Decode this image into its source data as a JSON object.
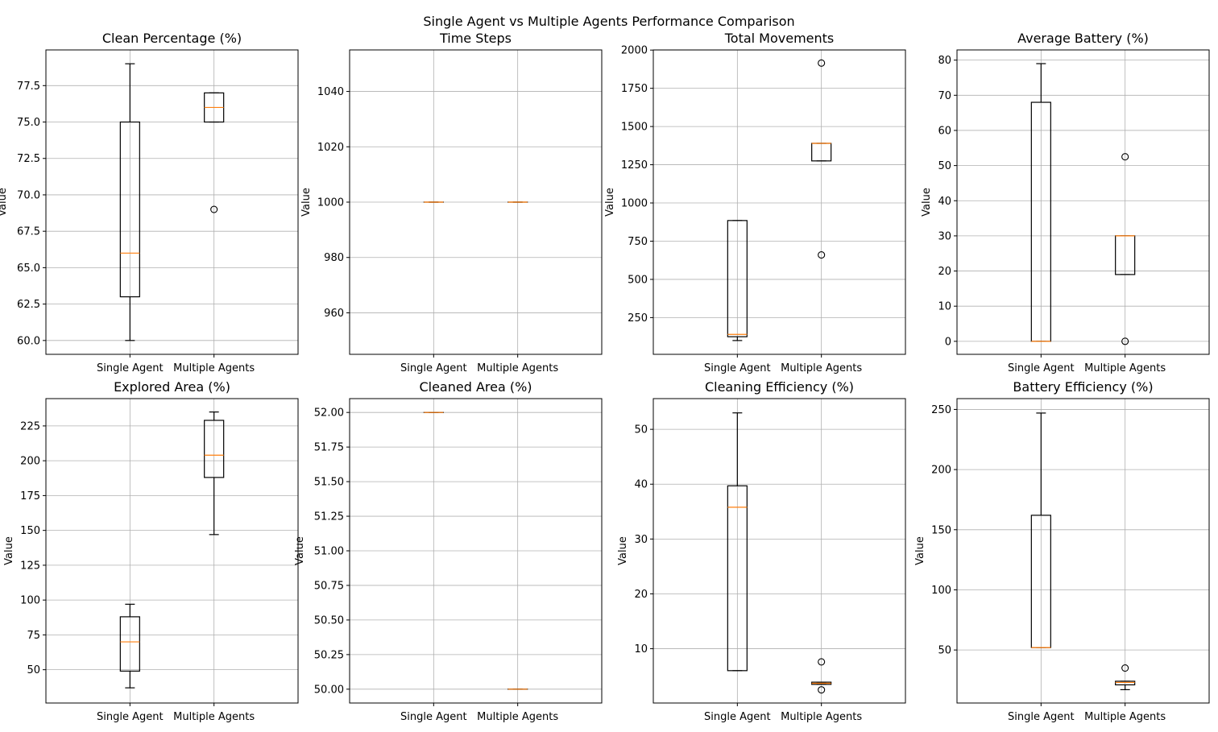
{
  "figure": {
    "suptitle": "Single Agent vs Multiple Agents Performance Comparison"
  },
  "chart_data": [
    {
      "type": "box",
      "title": "Clean Percentage (%)",
      "ylabel": "Value",
      "categories": [
        "Single Agent",
        "Multiple Agents"
      ],
      "ylim": [
        59.05,
        79.95
      ],
      "yticks": [
        60.0,
        62.5,
        65.0,
        67.5,
        70.0,
        72.5,
        75.0,
        77.5
      ],
      "ytick_labels": [
        "60.0",
        "62.5",
        "65.0",
        "67.5",
        "70.0",
        "72.5",
        "75.0",
        "77.5"
      ],
      "boxes": [
        {
          "whislo": 60,
          "q1": 63,
          "med": 66,
          "q3": 75,
          "whishi": 79,
          "fliers": []
        },
        {
          "whislo": 75,
          "q1": 75,
          "med": 76,
          "q3": 77,
          "whishi": 77,
          "fliers": [
            69
          ]
        }
      ],
      "grid": true
    },
    {
      "type": "box",
      "title": "Time Steps",
      "ylabel": "Value",
      "categories": [
        "Single Agent",
        "Multiple Agents"
      ],
      "ylim": [
        945,
        1055
      ],
      "yticks": [
        960,
        980,
        1000,
        1020,
        1040
      ],
      "ytick_labels": [
        "960",
        "980",
        "1000",
        "1020",
        "1040"
      ],
      "boxes": [
        {
          "whislo": 1000,
          "q1": 1000,
          "med": 1000,
          "q3": 1000,
          "whishi": 1000,
          "fliers": []
        },
        {
          "whislo": 1000,
          "q1": 1000,
          "med": 1000,
          "q3": 1000,
          "whishi": 1000,
          "fliers": []
        }
      ],
      "grid": true
    },
    {
      "type": "box",
      "title": "Total Movements",
      "ylabel": "Value",
      "categories": [
        "Single Agent",
        "Multiple Agents"
      ],
      "ylim": [
        9.8,
        2001
      ],
      "yticks": [
        250,
        500,
        750,
        1000,
        1250,
        1500,
        1750,
        2000
      ],
      "ytick_labels": [
        "250",
        "500",
        "750",
        "1000",
        "1250",
        "1500",
        "1750",
        "2000"
      ],
      "boxes": [
        {
          "whislo": 100,
          "q1": 125,
          "med": 140,
          "q3": 885,
          "whishi": 885,
          "fliers": []
        },
        {
          "whislo": 1275,
          "q1": 1275,
          "med": 1390,
          "q3": 1390,
          "whishi": 1390,
          "fliers": [
            660,
            1915
          ]
        }
      ],
      "grid": true
    },
    {
      "type": "box",
      "title": "Average Battery (%)",
      "ylabel": "Value",
      "categories": [
        "Single Agent",
        "Multiple Agents"
      ],
      "ylim": [
        -3.7,
        82.9
      ],
      "yticks": [
        0,
        10,
        20,
        30,
        40,
        50,
        60,
        70,
        80
      ],
      "ytick_labels": [
        "0",
        "10",
        "20",
        "30",
        "40",
        "50",
        "60",
        "70",
        "80"
      ],
      "boxes": [
        {
          "whislo": 0,
          "q1": 0,
          "med": 0,
          "q3": 68,
          "whishi": 79,
          "fliers": []
        },
        {
          "whislo": 19,
          "q1": 19,
          "med": 30,
          "q3": 30,
          "whishi": 30,
          "fliers": [
            0,
            52.5
          ]
        }
      ],
      "grid": true
    },
    {
      "type": "box",
      "title": "Explored Area (%)",
      "ylabel": "Value",
      "categories": [
        "Single Agent",
        "Multiple Agents"
      ],
      "ylim": [
        26.1,
        244.6
      ],
      "yticks": [
        50,
        75,
        100,
        125,
        150,
        175,
        200,
        225
      ],
      "ytick_labels": [
        "50",
        "75",
        "100",
        "125",
        "150",
        "175",
        "200",
        "225"
      ],
      "boxes": [
        {
          "whislo": 37,
          "q1": 49,
          "med": 70,
          "q3": 88,
          "whishi": 97,
          "fliers": []
        },
        {
          "whislo": 147,
          "q1": 188,
          "med": 204,
          "q3": 229,
          "whishi": 235,
          "fliers": []
        }
      ],
      "grid": true
    },
    {
      "type": "box",
      "title": "Cleaned Area (%)",
      "ylabel": "Value",
      "categories": [
        "Single Agent",
        "Multiple Agents"
      ],
      "ylim": [
        49.9,
        52.1
      ],
      "yticks": [
        50.0,
        50.25,
        50.5,
        50.75,
        51.0,
        51.25,
        51.5,
        51.75,
        52.0
      ],
      "ytick_labels": [
        "50.00",
        "50.25",
        "50.50",
        "50.75",
        "51.00",
        "51.25",
        "51.50",
        "51.75",
        "52.00"
      ],
      "boxes": [
        {
          "whislo": 52,
          "q1": 52,
          "med": 52,
          "q3": 52,
          "whishi": 52,
          "fliers": []
        },
        {
          "whislo": 50,
          "q1": 50,
          "med": 50,
          "q3": 50,
          "whishi": 50,
          "fliers": []
        }
      ],
      "grid": true
    },
    {
      "type": "box",
      "title": "Cleaning Efficiency (%)",
      "ylabel": "Value",
      "categories": [
        "Single Agent",
        "Multiple Agents"
      ],
      "ylim": [
        0.1,
        55.6
      ],
      "yticks": [
        10,
        20,
        30,
        40,
        50
      ],
      "ytick_labels": [
        "10",
        "20",
        "30",
        "40",
        "50"
      ],
      "boxes": [
        {
          "whislo": 6,
          "q1": 6,
          "med": 35.8,
          "q3": 39.7,
          "whishi": 53,
          "fliers": []
        },
        {
          "whislo": 3.5,
          "q1": 3.5,
          "med": 3.7,
          "q3": 3.9,
          "whishi": 3.9,
          "fliers": [
            2.5,
            7.6
          ]
        }
      ],
      "grid": true
    },
    {
      "type": "box",
      "title": "Battery Efficiency (%)",
      "ylabel": "Value",
      "categories": [
        "Single Agent",
        "Multiple Agents"
      ],
      "ylim": [
        5.9,
        259
      ],
      "yticks": [
        50,
        100,
        150,
        200,
        250
      ],
      "ytick_labels": [
        "50",
        "100",
        "150",
        "200",
        "250"
      ],
      "boxes": [
        {
          "whislo": 52,
          "q1": 52,
          "med": 52,
          "q3": 162,
          "whishi": 247,
          "fliers": []
        },
        {
          "whislo": 17,
          "q1": 21,
          "med": 23,
          "q3": 24,
          "whishi": 24,
          "fliers": [
            35
          ]
        }
      ],
      "grid": true
    }
  ],
  "colors": {
    "box": "#000000",
    "median": "#ff7f0e",
    "grid": "#b0b0b0"
  }
}
